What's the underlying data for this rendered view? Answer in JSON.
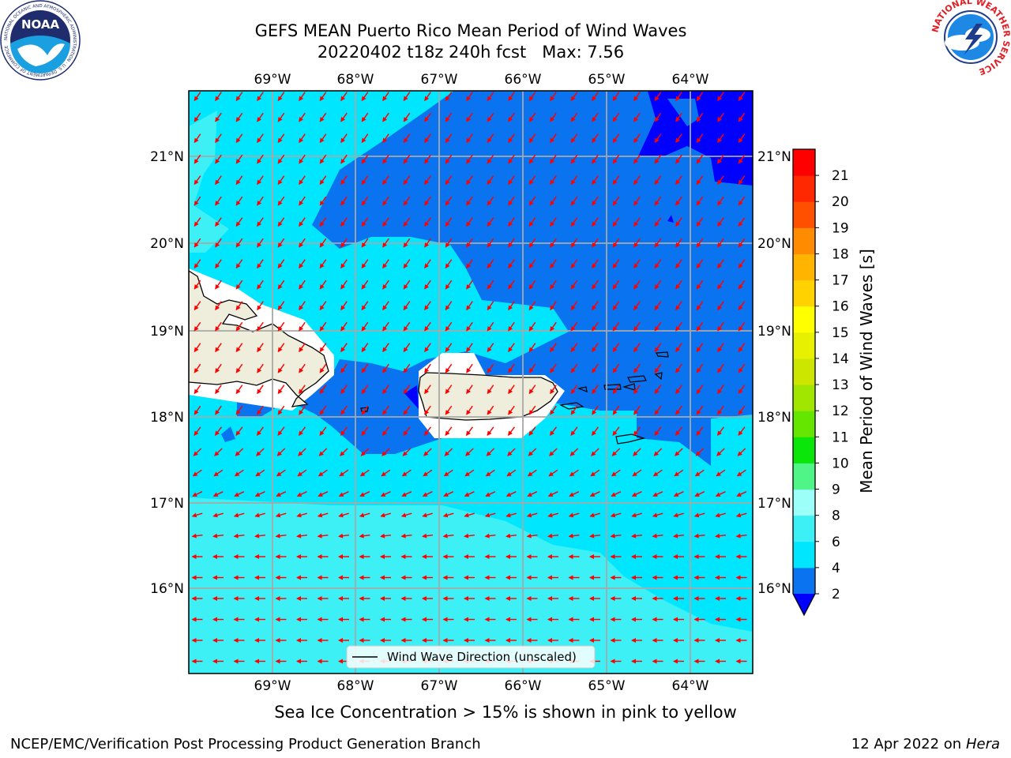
{
  "title": {
    "line1": "GEFS MEAN Puerto Rico Mean Period of Wind Waves",
    "line2": "20220402 t18z 240h fcst   Max: 7.56"
  },
  "note": "Sea Ice Concentration > 15% is shown in pink to yellow",
  "footer": {
    "left": "NCEP/EMC/Verification Post Processing Product Generation Branch",
    "right_prefix": "12 Apr 2022 on ",
    "right_machine": "Hera"
  },
  "legend": {
    "label": "Wind Wave Direction (unscaled)"
  },
  "map": {
    "lon_labels": [
      "69°W",
      "68°W",
      "67°W",
      "66°W",
      "65°W",
      "64°W"
    ],
    "lat_labels": [
      "21°N",
      "20°N",
      "19°N",
      "18°N",
      "17°N",
      "16°N"
    ],
    "land_color": "#efeddc",
    "arrow_color": "#ff0000"
  },
  "colorbar": {
    "label": "Mean Period of Wind Waves [s]",
    "ticks": [
      "2",
      "4",
      "6",
      "8",
      "9",
      "10",
      "11",
      "12",
      "13",
      "14",
      "15",
      "16",
      "17",
      "18",
      "19",
      "20",
      "21"
    ],
    "colors": [
      "#0a73f0",
      "#00e6ff",
      "#3cf0f5",
      "#9cfff8",
      "#4ff587",
      "#0ae60a",
      "#64e600",
      "#a0e600",
      "#cce600",
      "#e6f000",
      "#ffff00",
      "#ffd200",
      "#ffb400",
      "#ff8c00",
      "#ff5000",
      "#ff2800",
      "#ff0000"
    ],
    "under_color": "#0000ff"
  },
  "logos": {
    "noaa_text": "NOAA",
    "noaa_ring": "NATIONAL OCEANIC AND ATMOSPHERIC ADMINISTRATION · U.S. DEPARTMENT OF COMMERCE",
    "nws_ring": "NATIONAL WEATHER SERVICE"
  }
}
